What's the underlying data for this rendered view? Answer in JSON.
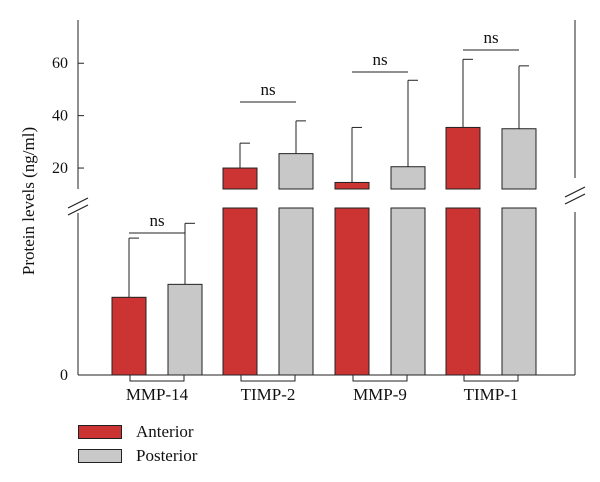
{
  "chart_data": {
    "type": "bar",
    "ylabel": "Protein levels (ng/ml)",
    "categories": [
      "MMP-14",
      "TIMP-2",
      "MMP-9",
      "TIMP-1"
    ],
    "y_ticks": [
      "0",
      "20",
      "40",
      "60"
    ],
    "axis_break": true,
    "series": [
      {
        "name": "Anterior",
        "color": "#cc3333",
        "values": [
          4.2,
          20,
          14.5,
          35.5
        ],
        "error": [
          3.2,
          9.5,
          21,
          26
        ]
      },
      {
        "name": "Posterior",
        "color": "#c8c8c8",
        "values": [
          4.9,
          25.5,
          20.5,
          35
        ],
        "error": [
          3.3,
          12.5,
          33,
          24
        ]
      }
    ],
    "annotations": [
      "ns",
      "ns",
      "ns",
      "ns"
    ]
  }
}
